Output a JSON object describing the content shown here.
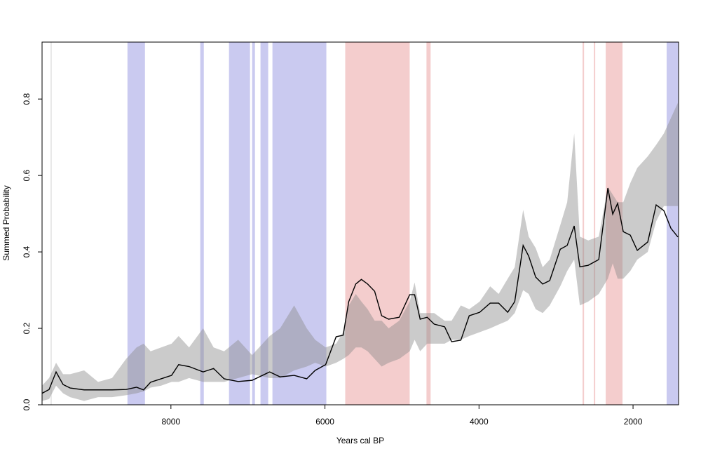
{
  "chart_data": {
    "type": "line",
    "x_label": "Years cal BP",
    "y_label": "Summed Probability",
    "xlim": [
      9673,
      1409
    ],
    "ylim": [
      0,
      0.949
    ],
    "xticks": [
      8000,
      6000,
      4000,
      2000
    ],
    "yticks": [
      {
        "value": 0,
        "label": "0.0"
      },
      0.2,
      0.4,
      0.6,
      0.8
    ],
    "x": [
      9673,
      9582,
      9491,
      9400,
      9309,
      9127,
      8946,
      8764,
      8582,
      8446,
      8355,
      8264,
      8127,
      7991,
      7900,
      7764,
      7582,
      7446,
      7309,
      7127,
      6946,
      6718,
      6582,
      6400,
      6237,
      6127,
      5991,
      5855,
      5764,
      5691,
      5600,
      5527,
      5446,
      5355,
      5264,
      5173,
      5036,
      4900,
      4836,
      4764,
      4673,
      4582,
      4446,
      4355,
      4236,
      4127,
      3991,
      3855,
      3745,
      3627,
      3536,
      3427,
      3355,
      3264,
      3173,
      3082,
      2945,
      2855,
      2764,
      2691,
      2582,
      2445,
      2327,
      2264,
      2200,
      2127,
      2036,
      1945,
      1809,
      1700,
      1600,
      1509,
      1418
    ],
    "envelope": {
      "color": "rgba(140,140,140,0.45)",
      "upper": [
        0.05,
        0.07,
        0.11,
        0.08,
        0.08,
        0.09,
        0.06,
        0.07,
        0.12,
        0.15,
        0.16,
        0.14,
        0.15,
        0.16,
        0.18,
        0.15,
        0.2,
        0.15,
        0.14,
        0.17,
        0.13,
        0.18,
        0.2,
        0.26,
        0.2,
        0.17,
        0.15,
        0.16,
        0.19,
        0.26,
        0.29,
        0.27,
        0.25,
        0.22,
        0.22,
        0.2,
        0.22,
        0.27,
        0.32,
        0.24,
        0.24,
        0.24,
        0.22,
        0.22,
        0.26,
        0.25,
        0.27,
        0.31,
        0.29,
        0.33,
        0.36,
        0.51,
        0.44,
        0.41,
        0.36,
        0.38,
        0.47,
        0.53,
        0.71,
        0.44,
        0.43,
        0.44,
        0.57,
        0.55,
        0.53,
        0.53,
        0.58,
        0.62,
        0.65,
        0.68,
        0.71,
        0.75,
        0.79
      ],
      "lower": [
        0.01,
        0.015,
        0.05,
        0.03,
        0.02,
        0.01,
        0.02,
        0.02,
        0.025,
        0.03,
        0.035,
        0.045,
        0.05,
        0.06,
        0.06,
        0.07,
        0.06,
        0.06,
        0.06,
        0.07,
        0.08,
        0.07,
        0.07,
        0.09,
        0.1,
        0.11,
        0.1,
        0.11,
        0.12,
        0.13,
        0.15,
        0.15,
        0.14,
        0.12,
        0.1,
        0.11,
        0.12,
        0.14,
        0.17,
        0.14,
        0.16,
        0.16,
        0.16,
        0.17,
        0.17,
        0.18,
        0.19,
        0.2,
        0.21,
        0.22,
        0.24,
        0.3,
        0.29,
        0.25,
        0.24,
        0.26,
        0.31,
        0.35,
        0.38,
        0.26,
        0.27,
        0.29,
        0.33,
        0.37,
        0.33,
        0.33,
        0.35,
        0.38,
        0.4,
        0.48,
        0.52,
        0.52,
        0.52
      ]
    },
    "series": [
      {
        "color": "#000000",
        "values": [
          0.03,
          0.04,
          0.086,
          0.053,
          0.044,
          0.039,
          0.039,
          0.039,
          0.04,
          0.046,
          0.039,
          0.059,
          0.068,
          0.077,
          0.105,
          0.1,
          0.086,
          0.095,
          0.068,
          0.061,
          0.064,
          0.086,
          0.073,
          0.077,
          0.068,
          0.09,
          0.105,
          0.178,
          0.182,
          0.27,
          0.316,
          0.328,
          0.316,
          0.297,
          0.233,
          0.224,
          0.229,
          0.288,
          0.288,
          0.224,
          0.229,
          0.211,
          0.204,
          0.165,
          0.169,
          0.233,
          0.242,
          0.266,
          0.266,
          0.242,
          0.27,
          0.417,
          0.389,
          0.334,
          0.316,
          0.325,
          0.407,
          0.417,
          0.468,
          0.361,
          0.365,
          0.38,
          0.567,
          0.499,
          0.527,
          0.453,
          0.444,
          0.404,
          0.426,
          0.523,
          0.508,
          0.462,
          0.439
        ]
      }
    ],
    "bands": [
      {
        "color": "rgba(60,60,200,0.27)",
        "ranges": [
          [
            8564,
            8337
          ],
          [
            7619,
            7573
          ],
          [
            7246,
            6973
          ],
          [
            6946,
            6909
          ],
          [
            6837,
            6737
          ],
          [
            6682,
            5982
          ],
          [
            1564,
            1409
          ]
        ]
      },
      {
        "color": "rgba(220,90,90,0.3)",
        "ranges": [
          [
            5737,
            4900
          ],
          [
            4682,
            4628
          ],
          [
            2655,
            2636
          ],
          [
            2509,
            2491
          ],
          [
            2355,
            2137
          ]
        ]
      }
    ],
    "vlines": {
      "color": "#d0d0d0",
      "values": [
        9555
      ]
    }
  }
}
